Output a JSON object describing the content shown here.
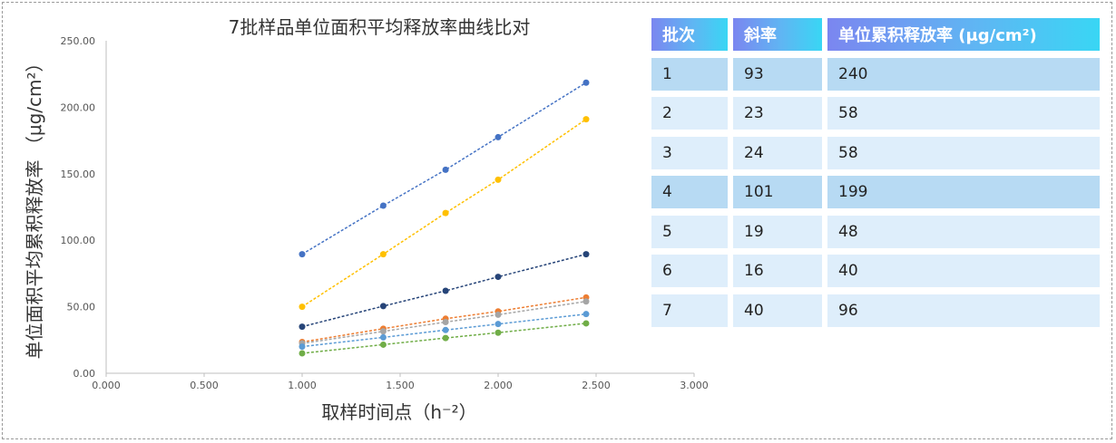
{
  "chart_data": {
    "type": "scatter",
    "title": "7批样品单位面积平均释放率曲线比对",
    "xlabel": "取样时间点（h⁻²）",
    "ylabel": "单位面积平均累积释放率 （μg/cm²）",
    "xlim": [
      0,
      3
    ],
    "ylim": [
      0,
      250
    ],
    "xticks": [
      "0.000",
      "0.500",
      "1.000",
      "1.500",
      "2.000",
      "2.500",
      "3.000"
    ],
    "yticks": [
      "0.00",
      "50.00",
      "100.00",
      "150.00",
      "200.00",
      "250.00"
    ],
    "grid": false,
    "legend": "none",
    "x": [
      1.0,
      1.414,
      1.732,
      2.0,
      2.449
    ],
    "series": [
      {
        "color": "#4472c4",
        "values": [
          89.5,
          126,
          153,
          177.5,
          218.5
        ]
      },
      {
        "color": "#ffc000",
        "values": [
          50,
          89.5,
          120.5,
          145.5,
          191
        ]
      },
      {
        "color": "#264478",
        "values": [
          35,
          50.5,
          62,
          72.5,
          89.5
        ]
      },
      {
        "color": "#ed7d31",
        "values": [
          23.5,
          33.5,
          41,
          46.5,
          57
        ]
      },
      {
        "color": "#a5a5a5",
        "values": [
          22.5,
          31.5,
          38.5,
          44,
          54
        ]
      },
      {
        "color": "#5b9bd5",
        "values": [
          20,
          27,
          32.5,
          37,
          44.5
        ]
      },
      {
        "color": "#70ad47",
        "values": [
          15,
          21.5,
          26.5,
          30.5,
          37.5
        ]
      }
    ]
  },
  "table": {
    "headers": [
      "批次",
      "斜率",
      "单位累积释放率 (μg/cm²)"
    ],
    "rows": [
      [
        "1",
        "93",
        "240"
      ],
      [
        "2",
        "23",
        "58"
      ],
      [
        "3",
        "24",
        "58"
      ],
      [
        "4",
        "101",
        "199"
      ],
      [
        "5",
        "19",
        "48"
      ],
      [
        "6",
        "16",
        "40"
      ],
      [
        "7",
        "40",
        "96"
      ]
    ]
  }
}
